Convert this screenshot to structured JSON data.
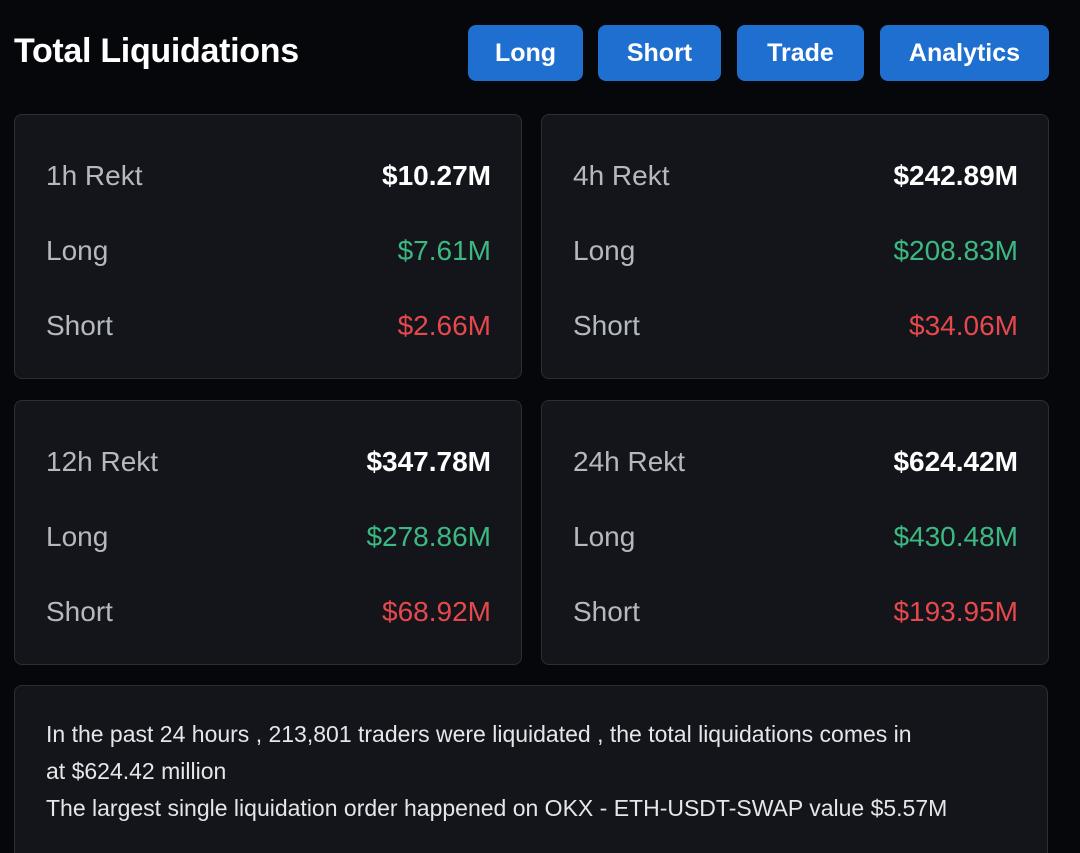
{
  "header": {
    "title": "Total Liquidations",
    "buttons": {
      "long": "Long",
      "short": "Short",
      "trade": "Trade",
      "analytics": "Analytics"
    }
  },
  "colors": {
    "accent": "#1e6fd0",
    "long": "#3cb982",
    "short": "#e5484d",
    "card_bg": "#13151a",
    "page_bg": "#06070b"
  },
  "cards": [
    {
      "label": "1h Rekt",
      "total": "$10.27M",
      "long_label": "Long",
      "long": "$7.61M",
      "short_label": "Short",
      "short": "$2.66M"
    },
    {
      "label": "4h Rekt",
      "total": "$242.89M",
      "long_label": "Long",
      "long": "$208.83M",
      "short_label": "Short",
      "short": "$34.06M"
    },
    {
      "label": "12h Rekt",
      "total": "$347.78M",
      "long_label": "Long",
      "long": "$278.86M",
      "short_label": "Short",
      "short": "$68.92M"
    },
    {
      "label": "24h Rekt",
      "total": "$624.42M",
      "long_label": "Long",
      "long": "$430.48M",
      "short_label": "Short",
      "short": "$193.95M"
    }
  ],
  "summary": {
    "line1": "In the past 24 hours , 213,801 traders were liquidated , the total liquidations comes in",
    "line2": "at $624.42 million",
    "line3": "The largest single liquidation order happened on OKX - ETH-USDT-SWAP value $5.57M"
  }
}
